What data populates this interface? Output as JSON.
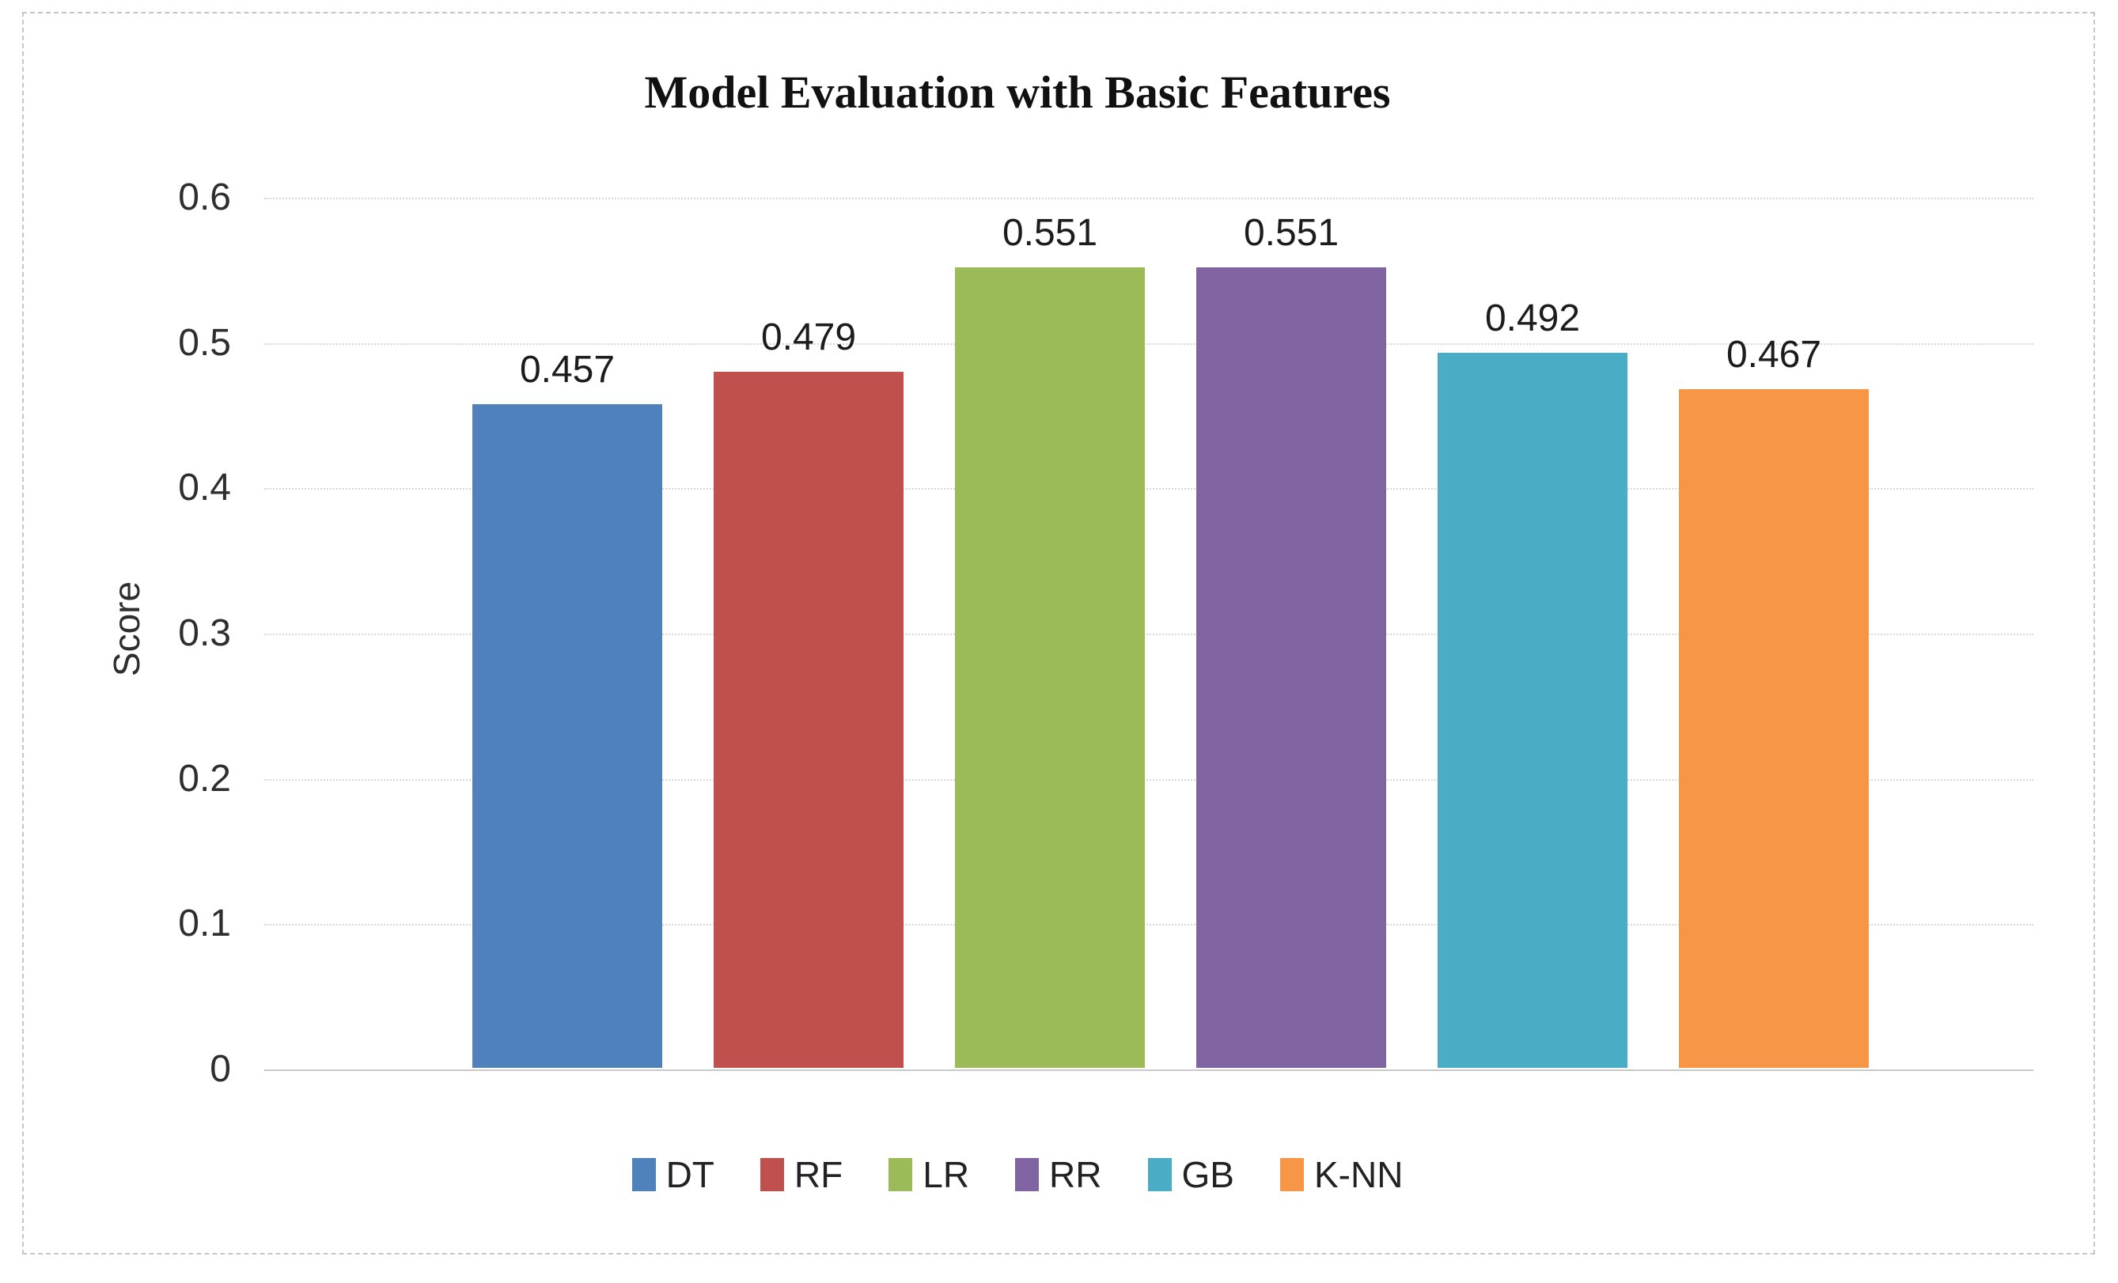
{
  "chart_data": {
    "type": "bar",
    "title": "Model Evaluation with Basic Features",
    "ylabel": "Score",
    "xlabel": "",
    "categories": [
      "DT",
      "RF",
      "LR",
      "RR",
      "GB",
      "K-NN"
    ],
    "values": [
      0.457,
      0.479,
      0.551,
      0.551,
      0.492,
      0.467
    ],
    "value_labels": [
      "0.457",
      "0.479",
      "0.551",
      "0.551",
      "0.492",
      "0.467"
    ],
    "series_colors": [
      "#4F81BD",
      "#C0504D",
      "#9BBB59",
      "#8064A2",
      "#4BACC6",
      "#F79646"
    ],
    "ylim": [
      0,
      0.6
    ],
    "yticks": [
      {
        "value": 0.6,
        "label": "0.6"
      },
      {
        "value": 0.5,
        "label": "0.5"
      },
      {
        "value": 0.4,
        "label": "0.4"
      },
      {
        "value": 0.3,
        "label": "0.3"
      },
      {
        "value": 0.2,
        "label": "0.2"
      },
      {
        "value": 0.1,
        "label": "0.1"
      },
      {
        "value": 0,
        "label": "0"
      }
    ],
    "grid": true,
    "legend_position": "bottom"
  },
  "style": {
    "background": "#ffffff",
    "frame_border_color": "#c6c6c6",
    "grid_color": "#d8d8d8",
    "baseline_color": "#c9c9c9",
    "title_color": "#111111",
    "text_color": "#2e2e2e"
  }
}
